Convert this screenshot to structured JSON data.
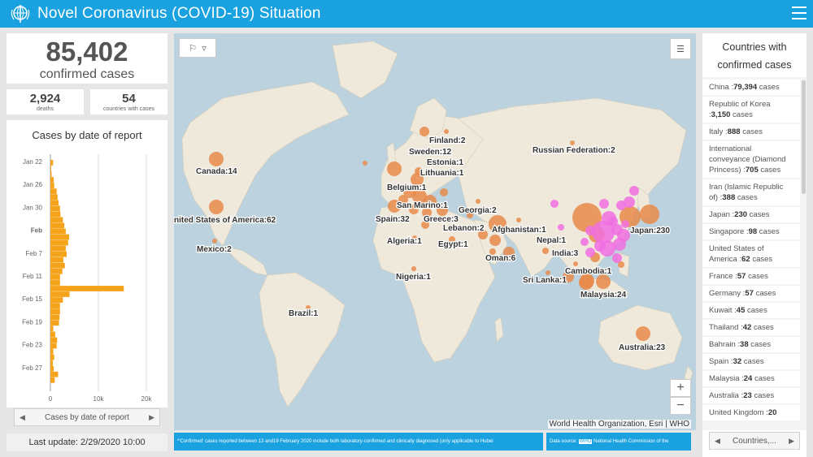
{
  "header": {
    "title": "Novel Coronavirus (COVID-19) Situation",
    "logo_icon": "who-logo-icon",
    "menu_icon": "hamburger-menu-icon"
  },
  "summary": {
    "total_value": "85,402",
    "total_label": "confirmed cases",
    "deaths_value": "2,924",
    "deaths_label": "deaths",
    "countries_value": "54",
    "countries_label": "countries with cases"
  },
  "chart": {
    "title": "Cases by date of report",
    "nav_label": "Cases by date of report",
    "last_update": "Last update: 2/29/2020 10:00"
  },
  "chart_data": {
    "type": "bar",
    "orientation": "horizontal",
    "title": "Cases by date of report",
    "ytick_labels": [
      "Jan 22",
      "Jan 26",
      "Jan 30",
      "Feb",
      "Feb 7",
      "Feb 11",
      "Feb 15",
      "Feb 19",
      "Feb 23",
      "Feb 27"
    ],
    "xtick_labels": [
      "0",
      "10k",
      "20k"
    ],
    "xlim": [
      0,
      20000
    ],
    "bar_color": "#f5a31a",
    "categories": [
      "Jan 22",
      "Jan 23",
      "Jan 24",
      "Jan 25",
      "Jan 26",
      "Jan 27",
      "Jan 28",
      "Jan 29",
      "Jan 30",
      "Jan 31",
      "Feb 1",
      "Feb 2",
      "Feb 3",
      "Feb 4",
      "Feb 5",
      "Feb 6",
      "Feb 7",
      "Feb 8",
      "Feb 9",
      "Feb 10",
      "Feb 11",
      "Feb 12",
      "Feb 13",
      "Feb 14",
      "Feb 15",
      "Feb 16",
      "Feb 17",
      "Feb 18",
      "Feb 19",
      "Feb 20",
      "Feb 21",
      "Feb 22",
      "Feb 23",
      "Feb 24",
      "Feb 25",
      "Feb 26",
      "Feb 27",
      "Feb 28",
      "Feb 29"
    ],
    "values": [
      550,
      100,
      250,
      700,
      800,
      1300,
      1500,
      1700,
      2000,
      2100,
      2600,
      2900,
      3200,
      3900,
      3700,
      3200,
      3400,
      2700,
      3000,
      2500,
      2000,
      2000,
      15300,
      4000,
      2600,
      2000,
      2000,
      1900,
      1800,
      600,
      1000,
      1400,
      1300,
      600,
      800,
      500,
      700,
      1600,
      900
    ]
  },
  "map": {
    "attribution": "World Health Organization, Esri | WHO",
    "labels": [
      {
        "text": "Finland:2"
      },
      {
        "text": "Sweden:12"
      },
      {
        "text": "Russian Federation:2"
      },
      {
        "text": "Estonia:1"
      },
      {
        "text": "Lithuania:1"
      },
      {
        "text": "Canada:14"
      },
      {
        "text": "Belgium:1"
      },
      {
        "text": "San Marino:1"
      },
      {
        "text": "Georgia:2"
      },
      {
        "text": "nited States of America:62"
      },
      {
        "text": "Spain:32"
      },
      {
        "text": "Greece:3"
      },
      {
        "text": "Lebanon:2"
      },
      {
        "text": "Afghanistan:1"
      },
      {
        "text": "Japan:230"
      },
      {
        "text": "Algeria:1"
      },
      {
        "text": "Egypt:1"
      },
      {
        "text": "Nepal:1"
      },
      {
        "text": "Mexico:2"
      },
      {
        "text": "India:3"
      },
      {
        "text": "Oman:6"
      },
      {
        "text": "Cambodia:1"
      },
      {
        "text": "Nigeria:1"
      },
      {
        "text": "Sri Lanka:1"
      },
      {
        "text": "Malaysia:24"
      },
      {
        "text": "Brazil:1"
      },
      {
        "text": "Australia:23"
      }
    ],
    "zoom_in": "+",
    "zoom_out": "−"
  },
  "footer": {
    "note": "*'Confirmed' cases reported between 13 and19 February 2020 include both laboratory-confirmed and clinically diagnosed (only  applicable to Hubei",
    "source_prefix": "Data source:",
    "source_who": "WHO",
    "source_rest": "National Health Commission of the"
  },
  "country_list": {
    "title": "Countries with confirmed cases",
    "items": [
      {
        "name": "China",
        "count": "79,394",
        "unit": "cases"
      },
      {
        "name": "Republic of Korea",
        "count": "3,150",
        "unit": "cases"
      },
      {
        "name": "Italy",
        "count": "888",
        "unit": "cases"
      },
      {
        "name": "International conveyance (Diamond Princess)",
        "count": "705",
        "unit": "cases"
      },
      {
        "name": "Iran (Islamic Republic of)",
        "count": "388",
        "unit": "cases"
      },
      {
        "name": "Japan",
        "count": "230",
        "unit": "cases"
      },
      {
        "name": "Singapore",
        "count": "98",
        "unit": "cases"
      },
      {
        "name": "United States of America",
        "count": "62",
        "unit": "cases"
      },
      {
        "name": "France",
        "count": "57",
        "unit": "cases"
      },
      {
        "name": "Germany",
        "count": "57",
        "unit": "cases"
      },
      {
        "name": "Kuwait",
        "count": "45",
        "unit": "cases"
      },
      {
        "name": "Thailand",
        "count": "42",
        "unit": "cases"
      },
      {
        "name": "Bahrain",
        "count": "38",
        "unit": "cases"
      },
      {
        "name": "Spain",
        "count": "32",
        "unit": "cases"
      },
      {
        "name": "Malaysia",
        "count": "24",
        "unit": "cases"
      },
      {
        "name": "Australia",
        "count": "23",
        "unit": "cases"
      },
      {
        "name": "United Kingdom",
        "count": "20",
        "unit": ""
      }
    ],
    "nav_label": "Countries,..."
  }
}
